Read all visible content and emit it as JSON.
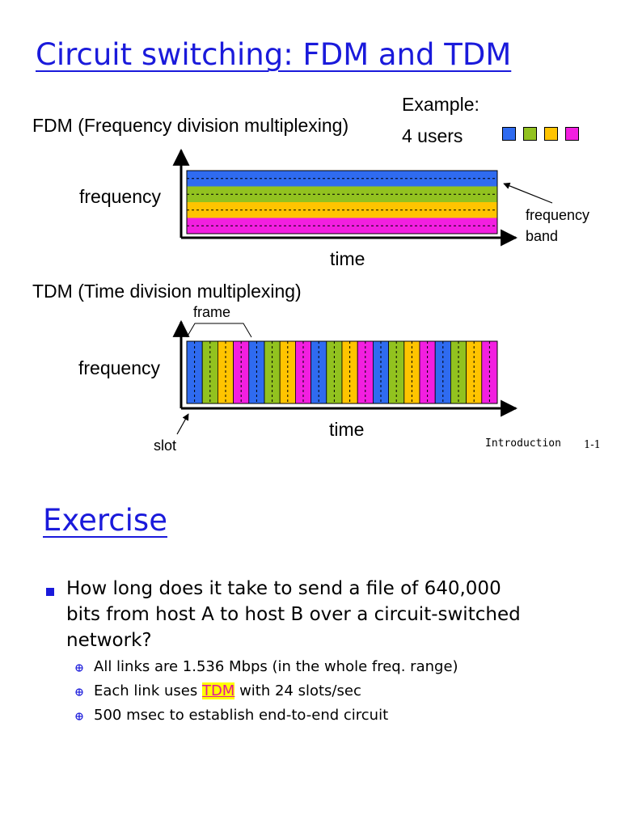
{
  "slide1": {
    "title": "Circuit switching: FDM and TDM",
    "fdm_label": "FDM (Frequency division multiplexing)",
    "example_label": "Example:",
    "users_label": "4 users",
    "user_colors": [
      "#2f6bf0",
      "#92c21f",
      "#ffc400",
      "#f21fe0"
    ],
    "fdm_ylabel": "frequency",
    "fdm_xlabel": "time",
    "band_annotation": [
      "frequency",
      "band"
    ],
    "tdm_label": "TDM (Time division multiplexing)",
    "frame_label": "frame",
    "tdm_ylabel": "frequency",
    "tdm_xlabel": "time",
    "slot_label": "slot",
    "footer_section": "Introduction",
    "footer_page": "1-1"
  },
  "slide2": {
    "title": "Exercise",
    "question_lines": [
      "How long does it take to send a file of 640,000",
      "bits from host A to host B over a circuit-switched",
      "network?"
    ],
    "sub_items": [
      {
        "text": "All links are 1.536 Mbps (in the whole freq. range)"
      },
      {
        "before": "Each link uses ",
        "highlight": "TDM",
        "after": " with 24 slots/sec"
      },
      {
        "text": "500 msec to establish end-to-end circuit"
      }
    ]
  }
}
